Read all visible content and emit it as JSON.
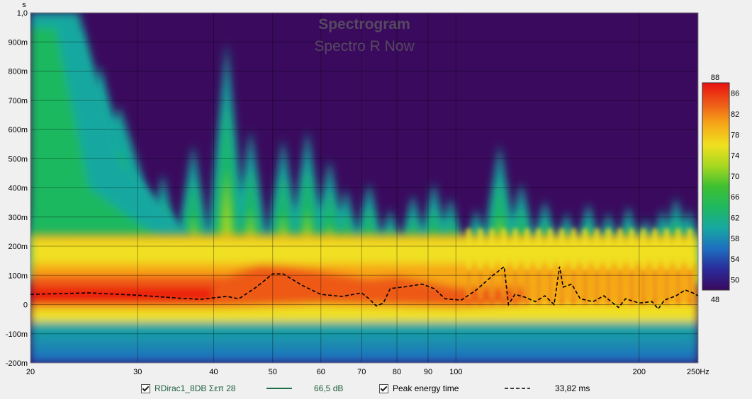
{
  "chart_data": {
    "type": "heatmap",
    "title": "Spectrogram",
    "subtitle": "Spectro R Now",
    "xscale": "log",
    "xlim": [
      20,
      250
    ],
    "x_ticks": [
      "20",
      "30",
      "40",
      "50",
      "60",
      "70",
      "80",
      "90",
      "100",
      "200",
      "250Hz"
    ],
    "x_tick_values": [
      20,
      30,
      40,
      50,
      60,
      70,
      80,
      90,
      100,
      200,
      250
    ],
    "ylabel": "s",
    "ylim": [
      -0.2,
      1.0
    ],
    "y_ticks": [
      "1,0",
      "900m",
      "800m",
      "700m",
      "600m",
      "500m",
      "400m",
      "300m",
      "200m",
      "100m",
      "0",
      "-100m",
      "-200m"
    ],
    "y_tick_values": [
      1.0,
      0.9,
      0.8,
      0.7,
      0.6,
      0.5,
      0.4,
      0.3,
      0.2,
      0.1,
      0.0,
      -0.1,
      -0.2
    ],
    "grid": true,
    "colorbar": {
      "min": 48,
      "max": 88,
      "ticks": [
        "88",
        "86",
        "82",
        "78",
        "74",
        "70",
        "66",
        "62",
        "58",
        "54",
        "50",
        "48"
      ],
      "tick_values": [
        88,
        86,
        82,
        78,
        74,
        70,
        66,
        62,
        58,
        54,
        50,
        48
      ],
      "stops": [
        "#3a0a5e",
        "#2a2a9a",
        "#1e6fc0",
        "#17a8a0",
        "#1fb860",
        "#3ec030",
        "#a8d820",
        "#f0e020",
        "#f6a818",
        "#ee5a18",
        "#e81010"
      ]
    },
    "peak_energy_time": {
      "name": "Peak energy time",
      "style": "dashed",
      "color": "#000000",
      "x": [
        20,
        25,
        30,
        35,
        38,
        42,
        44,
        47,
        50,
        52,
        56,
        60,
        65,
        70,
        72,
        74,
        76,
        78,
        82,
        88,
        92,
        96,
        102,
        108,
        115,
        120,
        122,
        125,
        130,
        135,
        140,
        145,
        148,
        150,
        155,
        160,
        168,
        175,
        185,
        190,
        200,
        210,
        215,
        220,
        230,
        238,
        245,
        250
      ],
      "y": [
        0.035,
        0.04,
        0.032,
        0.022,
        0.018,
        0.028,
        0.02,
        0.06,
        0.105,
        0.105,
        0.065,
        0.035,
        0.028,
        0.04,
        0.02,
        -0.005,
        0.005,
        0.055,
        0.06,
        0.07,
        0.055,
        0.02,
        0.015,
        0.05,
        0.1,
        0.13,
        0.0,
        0.035,
        0.025,
        0.01,
        0.03,
        0.0,
        0.13,
        0.06,
        0.07,
        0.02,
        0.01,
        0.03,
        -0.01,
        0.02,
        0.005,
        0.01,
        -0.015,
        0.015,
        0.03,
        0.05,
        0.04,
        0.03
      ]
    },
    "ridge_base": [
      {
        "x": 20,
        "t": 0.12
      },
      {
        "x": 40,
        "t": 0.12
      },
      {
        "x": 50,
        "t": 0.12
      },
      {
        "x": 70,
        "t": 0.11
      },
      {
        "x": 100,
        "t": 0.1
      },
      {
        "x": 200,
        "t": 0.09
      },
      {
        "x": 250,
        "t": 0.09
      }
    ],
    "ridges": [
      {
        "x": 24,
        "t": 0.95
      },
      {
        "x": 26,
        "t": 0.82
      },
      {
        "x": 28,
        "t": 0.68
      },
      {
        "x": 33,
        "t": 0.45
      },
      {
        "x": 37,
        "t": 0.55
      },
      {
        "x": 42,
        "t": 0.9
      },
      {
        "x": 46,
        "t": 0.6
      },
      {
        "x": 52,
        "t": 0.57
      },
      {
        "x": 57,
        "t": 0.6
      },
      {
        "x": 62,
        "t": 0.5
      },
      {
        "x": 66,
        "t": 0.4
      },
      {
        "x": 72,
        "t": 0.42
      },
      {
        "x": 78,
        "t": 0.33
      },
      {
        "x": 85,
        "t": 0.38
      },
      {
        "x": 92,
        "t": 0.42
      },
      {
        "x": 98,
        "t": 0.37
      },
      {
        "x": 108,
        "t": 0.33
      },
      {
        "x": 118,
        "t": 0.55
      },
      {
        "x": 128,
        "t": 0.42
      },
      {
        "x": 140,
        "t": 0.36
      },
      {
        "x": 152,
        "t": 0.32
      },
      {
        "x": 165,
        "t": 0.35
      },
      {
        "x": 178,
        "t": 0.32
      },
      {
        "x": 192,
        "t": 0.34
      },
      {
        "x": 205,
        "t": 0.3
      },
      {
        "x": 218,
        "t": 0.33
      },
      {
        "x": 230,
        "t": 0.37
      },
      {
        "x": 242,
        "t": 0.33
      }
    ]
  },
  "legend": {
    "items": [
      {
        "label": "RDirac1_8DB Σεπ 28",
        "value": "66,5 dB",
        "line_color": "#1e6e4a",
        "line_style": "solid"
      },
      {
        "label": "Peak energy time",
        "value": "33,82 ms",
        "line_color": "#000000",
        "line_style": "dashed"
      }
    ]
  }
}
